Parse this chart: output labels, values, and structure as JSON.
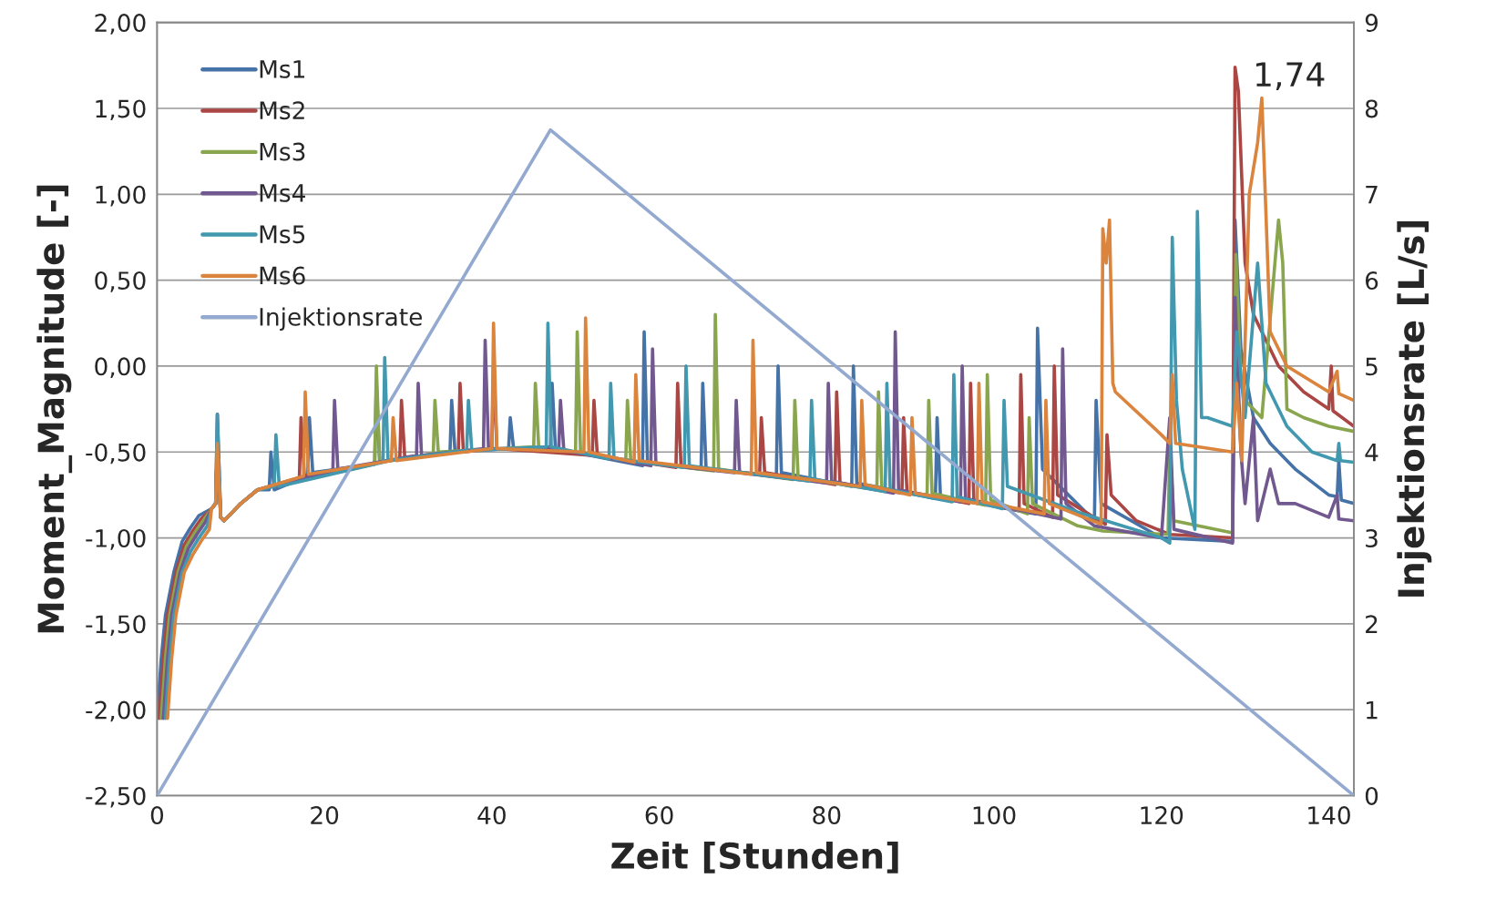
{
  "chart_data": {
    "type": "line",
    "xlabel": "Zeit [Stunden]",
    "ylabel": "Moment_Magnitude [-]",
    "y2label": "Injektionsrate [L/s]",
    "xlim": [
      0,
      143
    ],
    "xticks": [
      0,
      20,
      40,
      60,
      80,
      100,
      120,
      140
    ],
    "ylim": [
      -2.5,
      2.0
    ],
    "yticks": [
      {
        "value": -2.5,
        "label": "-2,50"
      },
      {
        "value": -2.0,
        "label": "-2,00"
      },
      {
        "value": -1.5,
        "label": "-1,50"
      },
      {
        "value": -1.0,
        "label": "-1,00"
      },
      {
        "value": -0.5,
        "label": "-0,50"
      },
      {
        "value": 0,
        "label": "0,00"
      },
      {
        "value": 0.5,
        "label": "0,50"
      },
      {
        "value": 1.0,
        "label": "1,00"
      },
      {
        "value": 1.5,
        "label": "1,50"
      },
      {
        "value": 2.0,
        "label": "2,00"
      }
    ],
    "y2lim": [
      0,
      9
    ],
    "y2ticks": [
      0,
      1,
      2,
      3,
      4,
      5,
      6,
      7,
      8,
      9
    ],
    "grid": "y",
    "legend": "top left",
    "marker": "none",
    "line_style": "solid",
    "annotations": [
      {
        "text": "1,74",
        "x": 128.8,
        "y": 1.74
      }
    ],
    "series": [
      {
        "name": "Ms1",
        "color": "#4572a7",
        "x": [
          0,
          0.5,
          1,
          2,
          3,
          4,
          5,
          6.5,
          7,
          7.2,
          7.6,
          8,
          10,
          12,
          13.4,
          13.6,
          14,
          18,
          18.2,
          18.6,
          26,
          26.2,
          26.6,
          35,
          35.2,
          35.6,
          42,
          42.2,
          42.6,
          47,
          47.2,
          47.6,
          58,
          58.2,
          58.6,
          65,
          65.2,
          65.6,
          74,
          74.2,
          74.6,
          83,
          83.2,
          83.6,
          93,
          93.2,
          93.6,
          105,
          105.2,
          105.8,
          112,
          112.2,
          112.8,
          120,
          128.5,
          128.8,
          129.5,
          131,
          133,
          136,
          140,
          141,
          141.2,
          141.5,
          143
        ],
        "values": [
          -2.05,
          -1.7,
          -1.45,
          -1.2,
          -1.02,
          -0.94,
          -0.87,
          -0.83,
          -0.8,
          -0.45,
          -0.88,
          -0.9,
          -0.8,
          -0.72,
          -0.72,
          -0.5,
          -0.72,
          -0.64,
          -0.3,
          -0.62,
          -0.57,
          -0.1,
          -0.56,
          -0.5,
          -0.2,
          -0.5,
          -0.48,
          -0.3,
          -0.48,
          -0.47,
          -0.1,
          -0.48,
          -0.58,
          0.2,
          -0.56,
          -0.6,
          -0.1,
          -0.6,
          -0.64,
          0.0,
          -0.62,
          -0.7,
          0.0,
          -0.68,
          -0.77,
          -0.3,
          -0.76,
          -0.86,
          0.22,
          -0.6,
          -0.9,
          -0.2,
          -0.8,
          -1.0,
          -1.02,
          0.85,
          0.1,
          -0.3,
          -0.45,
          -0.6,
          -0.75,
          -0.76,
          -0.55,
          -0.78,
          -0.8
        ]
      },
      {
        "name": "Ms2",
        "color": "#aa4643",
        "x": [
          0.25,
          0.75,
          1.25,
          2.25,
          3.25,
          4.25,
          5.25,
          6.5,
          7,
          7.2,
          7.6,
          8,
          10,
          12,
          17,
          17.2,
          17.6,
          29,
          29.2,
          29.6,
          36,
          36.2,
          36.6,
          40,
          40.2,
          40.6,
          52,
          52.2,
          52.6,
          62,
          62.2,
          62.6,
          72,
          72.2,
          72.6,
          81,
          81.2,
          81.6,
          89,
          89.2,
          89.6,
          97,
          97.2,
          97.6,
          103,
          103.2,
          103.6,
          107,
          107.2,
          107.6,
          113.3,
          113.5,
          114,
          117,
          121,
          128.5,
          128.8,
          129.2,
          130,
          131,
          132,
          134,
          137,
          140,
          140.3,
          140.5,
          143
        ],
        "values": [
          -2.05,
          -1.7,
          -1.45,
          -1.2,
          -1.04,
          -0.96,
          -0.89,
          -0.83,
          -0.8,
          -0.45,
          -0.88,
          -0.9,
          -0.8,
          -0.72,
          -0.65,
          -0.3,
          -0.64,
          -0.54,
          -0.2,
          -0.54,
          -0.5,
          -0.1,
          -0.5,
          -0.48,
          0.0,
          -0.48,
          -0.52,
          -0.2,
          -0.52,
          -0.59,
          -0.1,
          -0.58,
          -0.63,
          -0.3,
          -0.62,
          -0.69,
          -0.15,
          -0.68,
          -0.74,
          -0.3,
          -0.73,
          -0.8,
          -0.1,
          -0.79,
          -0.84,
          -0.05,
          -0.8,
          -0.88,
          0.0,
          -0.75,
          -0.92,
          -0.4,
          -0.75,
          -0.9,
          -0.98,
          -1.0,
          1.74,
          1.6,
          0.6,
          0.3,
          0.2,
          0.0,
          -0.15,
          -0.25,
          0.0,
          -0.26,
          -0.35
        ]
      },
      {
        "name": "Ms3",
        "color": "#89a54e",
        "x": [
          0.5,
          1,
          1.5,
          2.5,
          3.5,
          4.5,
          5.5,
          6.5,
          7,
          7.2,
          7.6,
          8,
          10,
          12,
          26,
          26.2,
          26.6,
          33,
          33.2,
          33.6,
          45,
          45.2,
          45.6,
          50,
          50.2,
          50.6,
          56,
          56.2,
          56.6,
          66.5,
          66.7,
          67.1,
          76,
          76.2,
          76.6,
          86,
          86.2,
          86.6,
          92,
          92.2,
          92.6,
          99,
          99.2,
          99.6,
          104,
          104.2,
          104.6,
          110,
          113,
          120.8,
          121,
          121.5,
          128.5,
          128.9,
          129.5,
          130,
          132,
          134,
          134.5,
          135,
          137,
          140,
          143
        ],
        "values": [
          -2.05,
          -1.7,
          -1.45,
          -1.2,
          -1.05,
          -0.97,
          -0.9,
          -0.83,
          -0.8,
          -0.45,
          -0.88,
          -0.9,
          -0.8,
          -0.72,
          -0.57,
          0.0,
          -0.56,
          -0.51,
          -0.2,
          -0.5,
          -0.47,
          -0.1,
          -0.47,
          -0.5,
          0.2,
          -0.5,
          -0.55,
          -0.2,
          -0.55,
          -0.61,
          0.3,
          -0.6,
          -0.66,
          -0.2,
          -0.65,
          -0.72,
          -0.15,
          -0.71,
          -0.76,
          -0.2,
          -0.74,
          -0.81,
          -0.05,
          -0.78,
          -0.86,
          -0.3,
          -0.8,
          -0.93,
          -0.96,
          -0.98,
          -0.45,
          -0.9,
          -0.97,
          0.65,
          -0.1,
          -0.2,
          -0.3,
          0.85,
          0.6,
          -0.25,
          -0.3,
          -0.35,
          -0.38
        ]
      },
      {
        "name": "Ms4",
        "color": "#71588f",
        "x": [
          0.75,
          1.25,
          1.75,
          2.75,
          3.75,
          4.75,
          5.75,
          6.5,
          7,
          7.2,
          7.6,
          8,
          10,
          12,
          21,
          21.2,
          21.6,
          31,
          31.2,
          31.6,
          39,
          39.2,
          39.6,
          48,
          48.2,
          48.6,
          59,
          59.2,
          59.6,
          69,
          69.2,
          69.6,
          80,
          80.2,
          80.6,
          88,
          88.2,
          88.6,
          96,
          96.2,
          96.6,
          108,
          108.2,
          108.6,
          112,
          120,
          121,
          121.5,
          128.5,
          128.8,
          129.5,
          130,
          131,
          131.5,
          133,
          134,
          136,
          140,
          141,
          141.2,
          143
        ],
        "values": [
          -2.05,
          -1.7,
          -1.45,
          -1.2,
          -1.06,
          -0.98,
          -0.91,
          -0.83,
          -0.8,
          -0.28,
          -0.88,
          -0.9,
          -0.8,
          -0.72,
          -0.61,
          -0.2,
          -0.6,
          -0.52,
          -0.1,
          -0.52,
          -0.48,
          0.15,
          -0.48,
          -0.48,
          -0.2,
          -0.49,
          -0.58,
          0.1,
          -0.57,
          -0.62,
          -0.2,
          -0.62,
          -0.68,
          -0.1,
          -0.67,
          -0.74,
          0.2,
          -0.72,
          -0.79,
          0.0,
          -0.77,
          -0.89,
          0.1,
          -0.8,
          -0.93,
          -1.0,
          -0.3,
          -0.95,
          -1.03,
          0.4,
          -0.5,
          -0.8,
          -0.3,
          -0.9,
          -0.6,
          -0.8,
          -0.8,
          -0.88,
          -0.75,
          -0.89,
          -0.9
        ]
      },
      {
        "name": "Ms5",
        "color": "#4198af",
        "x": [
          1,
          1.5,
          2,
          3,
          4,
          5,
          6,
          6.5,
          7,
          7.2,
          7.6,
          8,
          10,
          12,
          14,
          14.2,
          14.6,
          27,
          27.2,
          27.6,
          37,
          37.2,
          37.6,
          46.5,
          46.7,
          47.1,
          54,
          54.2,
          54.6,
          63,
          63.2,
          63.6,
          78,
          78.2,
          78.6,
          87,
          87.2,
          87.6,
          95,
          95.2,
          95.6,
          101,
          101.2,
          101.6,
          110,
          120,
          121,
          121.3,
          121.8,
          122.5,
          124,
          124.3,
          124.8,
          125.5,
          128.5,
          129,
          130,
          131.5,
          132.5,
          135,
          138,
          141,
          141.2,
          141.4,
          143
        ],
        "values": [
          -2.05,
          -1.7,
          -1.45,
          -1.2,
          -1.08,
          -1.0,
          -0.93,
          -0.83,
          -0.8,
          -0.28,
          -0.88,
          -0.9,
          -0.8,
          -0.72,
          -0.7,
          -0.4,
          -0.7,
          -0.56,
          0.05,
          -0.55,
          -0.49,
          -0.2,
          -0.49,
          -0.47,
          0.25,
          -0.47,
          -0.54,
          -0.1,
          -0.54,
          -0.59,
          0.0,
          -0.58,
          -0.67,
          -0.2,
          -0.66,
          -0.73,
          -0.1,
          -0.72,
          -0.79,
          -0.05,
          -0.76,
          -0.83,
          -0.2,
          -0.7,
          -0.85,
          -1.0,
          -1.03,
          0.75,
          -0.2,
          -0.6,
          -0.95,
          0.9,
          -0.3,
          -0.3,
          -0.35,
          0.2,
          -0.3,
          0.6,
          -0.1,
          -0.35,
          -0.5,
          -0.55,
          -0.45,
          -0.55,
          -0.56
        ]
      },
      {
        "name": "Ms6",
        "color": "#db843d",
        "x": [
          1.25,
          1.75,
          2.25,
          3.25,
          4.25,
          5.25,
          6.25,
          6.5,
          7,
          7.2,
          7.6,
          8,
          10,
          12,
          17.5,
          17.7,
          18.1,
          28,
          28.2,
          28.6,
          40,
          40.2,
          40.6,
          51,
          51.2,
          51.6,
          57,
          57.2,
          57.6,
          71,
          71.2,
          71.6,
          84,
          84.2,
          84.6,
          90,
          90.2,
          90.6,
          98,
          98.2,
          98.6,
          106,
          106.2,
          106.6,
          112.8,
          113,
          113.4,
          113.8,
          114.2,
          114.5,
          120,
          121,
          121.3,
          121.7,
          128.5,
          129,
          129.6,
          130.5,
          131.5,
          132,
          133,
          135,
          140,
          141,
          141.2,
          143
        ],
        "values": [
          -2.05,
          -1.7,
          -1.45,
          -1.2,
          -1.1,
          -1.02,
          -0.95,
          -0.83,
          -0.8,
          -0.45,
          -0.88,
          -0.9,
          -0.8,
          -0.72,
          -0.64,
          -0.15,
          -0.63,
          -0.55,
          -0.3,
          -0.55,
          -0.48,
          0.25,
          -0.48,
          -0.5,
          0.28,
          -0.5,
          -0.56,
          -0.05,
          -0.55,
          -0.63,
          0.15,
          -0.62,
          -0.7,
          -0.2,
          -0.69,
          -0.75,
          -0.3,
          -0.74,
          -0.8,
          -0.1,
          -0.79,
          -0.86,
          -0.2,
          -0.8,
          -0.92,
          0.8,
          0.6,
          0.85,
          -0.1,
          -0.15,
          -0.4,
          -0.45,
          -0.05,
          -0.45,
          -0.5,
          -0.1,
          -0.55,
          1.0,
          1.3,
          1.56,
          0.2,
          0.0,
          -0.15,
          -0.03,
          -0.16,
          -0.2
        ]
      },
      {
        "name": "Injektionsrate",
        "color": "#93a9cf",
        "axis": "y2",
        "x": [
          0,
          47,
          143
        ],
        "values": [
          0,
          7.75,
          0
        ]
      }
    ]
  }
}
